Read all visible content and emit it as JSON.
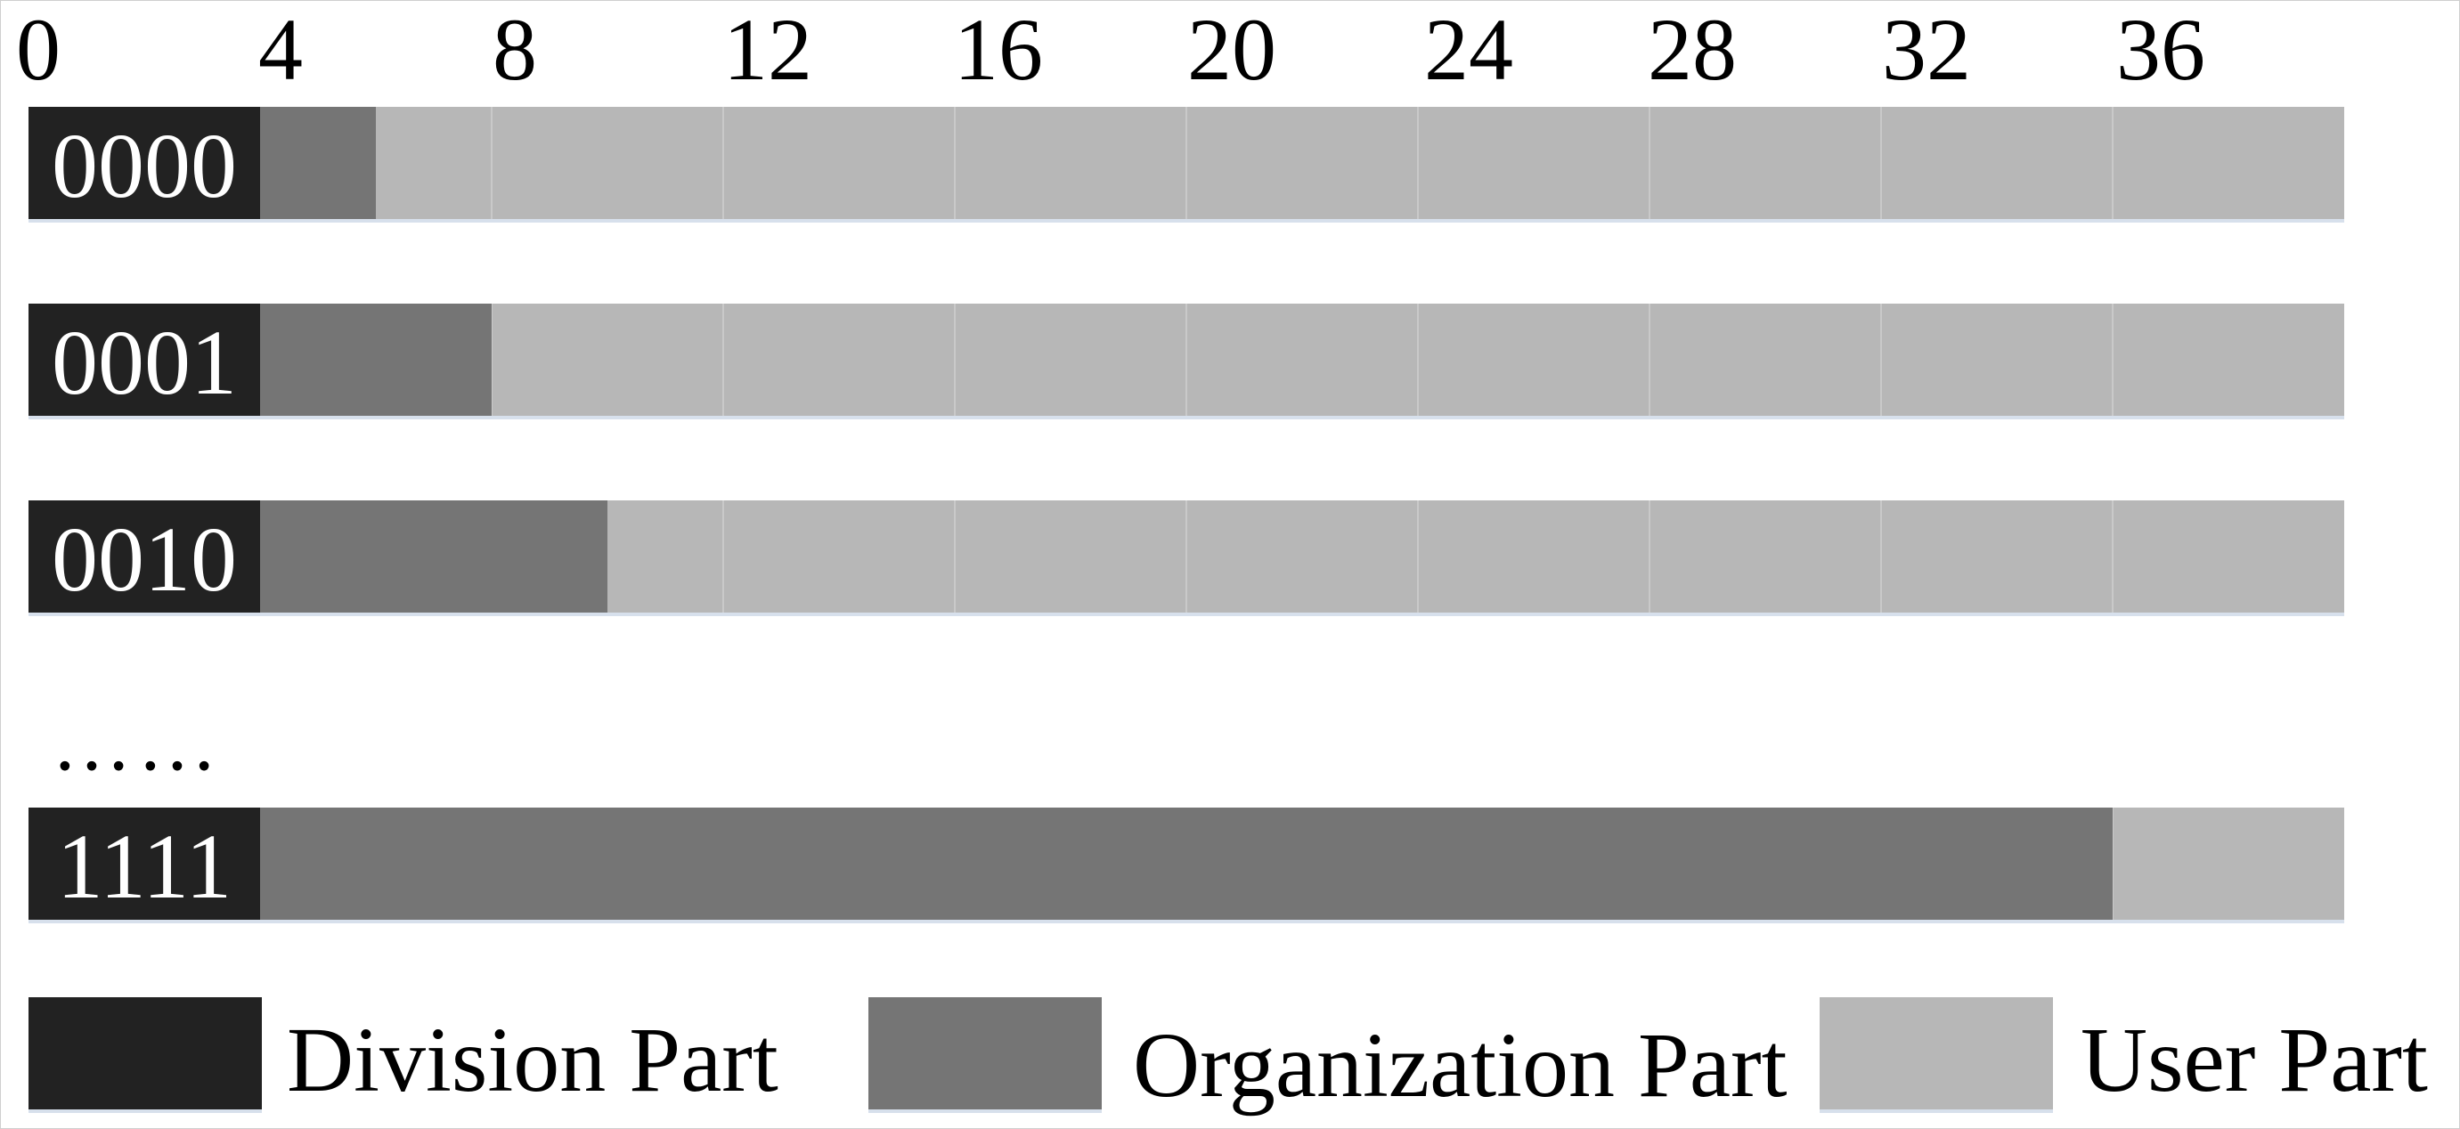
{
  "colors": {
    "division": "#222222",
    "organization": "#757575",
    "user": "#b7b7b7",
    "grid": "#c9c9c9"
  },
  "scale": {
    "max_bits": 40,
    "ticks": [
      "0",
      "4",
      "8",
      "12",
      "16",
      "20",
      "24",
      "28",
      "32",
      "36"
    ],
    "grid_bits": [
      8,
      12,
      16,
      20,
      24,
      28,
      32,
      36
    ]
  },
  "rows": [
    {
      "prefix": "0000",
      "division_bits": 4,
      "organization_end_bit": 6
    },
    {
      "prefix": "0001",
      "division_bits": 4,
      "organization_end_bit": 8
    },
    {
      "prefix": "0010",
      "division_bits": 4,
      "organization_end_bit": 10
    },
    {
      "prefix": "1111",
      "division_bits": 4,
      "organization_end_bit": 36
    }
  ],
  "ellipsis": "……",
  "legend": [
    {
      "key": "division",
      "label": "Division Part"
    },
    {
      "key": "organization",
      "label": "Organization Part"
    },
    {
      "key": "user",
      "label": "User Part"
    }
  ]
}
